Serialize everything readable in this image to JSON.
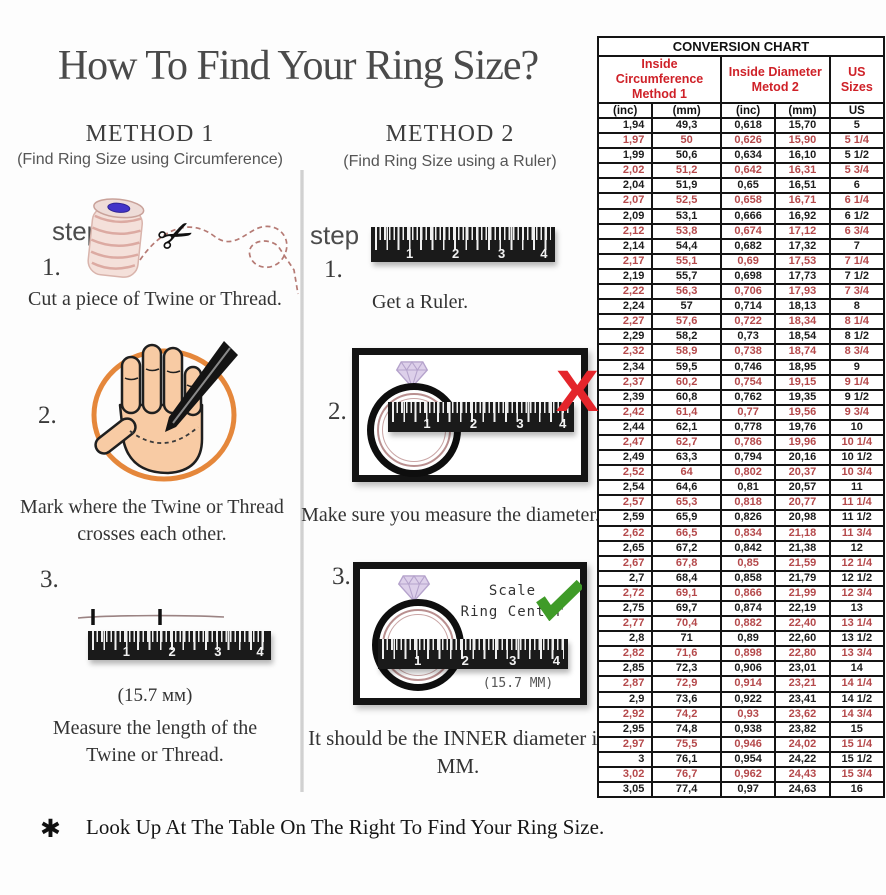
{
  "title": "How To Find Your Ring Size?",
  "method1": {
    "heading": "METHOD 1",
    "subheading": "(Find Ring Size using Circumference)",
    "step_label": "step",
    "steps": [
      {
        "num": "1.",
        "text": "Cut a piece of Twine or Thread."
      },
      {
        "num": "2.",
        "text": "Mark where the Twine or Thread crosses each other."
      },
      {
        "num": "3.",
        "measurement": "(15.7 мм)",
        "text": "Measure the length of the Twine or Thread."
      }
    ]
  },
  "method2": {
    "heading": "METHOD 2",
    "subheading": "(Find Ring Size using a Ruler)",
    "step_label": "step",
    "steps": [
      {
        "num": "1.",
        "text": "Get a Ruler."
      },
      {
        "num": "2.",
        "text": "Make sure you measure the diameter."
      },
      {
        "num": "3.",
        "text": "It should be the INNER diameter in MM."
      }
    ],
    "scale_note": "Scale\nRing Center",
    "inner_measurement": "(15.7 MM)"
  },
  "ruler_numbers": [
    "1",
    "2",
    "3",
    "4"
  ],
  "footnote": {
    "symbol": "✱",
    "text": "Look Up At The Table On The Right To Find Your Ring Size."
  },
  "icons": [
    "scissors-icon",
    "diamond-icon",
    "x-icon",
    "check-icon",
    "asterisk-icon"
  ],
  "colors": {
    "header_red": "#cf2128",
    "row_red": "#b5494b",
    "x_red": "#e4252b",
    "check_green": "#3f9b28",
    "circle_orange": "#e5873b",
    "title_gray": "#4a4a4a"
  },
  "chart": {
    "title": "CONVERSION CHART",
    "groups": [
      "Inside Circumference\nMethod 1",
      "Inside Diameter\nMetod 2",
      "US Sizes"
    ],
    "sub_headers": [
      "(inc)",
      "(mm)",
      "(inc)",
      "(mm)",
      "US"
    ],
    "rows": [
      [
        "1,94",
        "49,3",
        "0,618",
        "15,70",
        "5"
      ],
      [
        "1,97",
        "50",
        "0,626",
        "15,90",
        "5 1/4"
      ],
      [
        "1,99",
        "50,6",
        "0,634",
        "16,10",
        "5 1/2"
      ],
      [
        "2,02",
        "51,2",
        "0,642",
        "16,31",
        "5 3/4"
      ],
      [
        "2,04",
        "51,9",
        "0,65",
        "16,51",
        "6"
      ],
      [
        "2,07",
        "52,5",
        "0,658",
        "16,71",
        "6 1/4"
      ],
      [
        "2,09",
        "53,1",
        "0,666",
        "16,92",
        "6 1/2"
      ],
      [
        "2,12",
        "53,8",
        "0,674",
        "17,12",
        "6 3/4"
      ],
      [
        "2,14",
        "54,4",
        "0,682",
        "17,32",
        "7"
      ],
      [
        "2,17",
        "55,1",
        "0,69",
        "17,53",
        "7 1/4"
      ],
      [
        "2,19",
        "55,7",
        "0,698",
        "17,73",
        "7 1/2"
      ],
      [
        "2,22",
        "56,3",
        "0,706",
        "17,93",
        "7 3/4"
      ],
      [
        "2,24",
        "57",
        "0,714",
        "18,13",
        "8"
      ],
      [
        "2,27",
        "57,6",
        "0,722",
        "18,34",
        "8 1/4"
      ],
      [
        "2,29",
        "58,2",
        "0,73",
        "18,54",
        "8 1/2"
      ],
      [
        "2,32",
        "58,9",
        "0,738",
        "18,74",
        "8 3/4"
      ],
      [
        "2,34",
        "59,5",
        "0,746",
        "18,95",
        "9"
      ],
      [
        "2,37",
        "60,2",
        "0,754",
        "19,15",
        "9 1/4"
      ],
      [
        "2,39",
        "60,8",
        "0,762",
        "19,35",
        "9 1/2"
      ],
      [
        "2,42",
        "61,4",
        "0,77",
        "19,56",
        "9 3/4"
      ],
      [
        "2,44",
        "62,1",
        "0,778",
        "19,76",
        "10"
      ],
      [
        "2,47",
        "62,7",
        "0,786",
        "19,96",
        "10 1/4"
      ],
      [
        "2,49",
        "63,3",
        "0,794",
        "20,16",
        "10 1/2"
      ],
      [
        "2,52",
        "64",
        "0,802",
        "20,37",
        "10 3/4"
      ],
      [
        "2,54",
        "64,6",
        "0,81",
        "20,57",
        "11"
      ],
      [
        "2,57",
        "65,3",
        "0,818",
        "20,77",
        "11 1/4"
      ],
      [
        "2,59",
        "65,9",
        "0,826",
        "20,98",
        "11 1/2"
      ],
      [
        "2,62",
        "66,5",
        "0,834",
        "21,18",
        "11 3/4"
      ],
      [
        "2,65",
        "67,2",
        "0,842",
        "21,38",
        "12"
      ],
      [
        "2,67",
        "67,8",
        "0,85",
        "21,59",
        "12 1/4"
      ],
      [
        "2,7",
        "68,4",
        "0,858",
        "21,79",
        "12 1/2"
      ],
      [
        "2,72",
        "69,1",
        "0,866",
        "21,99",
        "12 3/4"
      ],
      [
        "2,75",
        "69,7",
        "0,874",
        "22,19",
        "13"
      ],
      [
        "2,77",
        "70,4",
        "0,882",
        "22,40",
        "13 1/4"
      ],
      [
        "2,8",
        "71",
        "0,89",
        "22,60",
        "13 1/2"
      ],
      [
        "2,82",
        "71,6",
        "0,898",
        "22,80",
        "13 3/4"
      ],
      [
        "2,85",
        "72,3",
        "0,906",
        "23,01",
        "14"
      ],
      [
        "2,87",
        "72,9",
        "0,914",
        "23,21",
        "14 1/4"
      ],
      [
        "2,9",
        "73,6",
        "0,922",
        "23,41",
        "14 1/2"
      ],
      [
        "2,92",
        "74,2",
        "0,93",
        "23,62",
        "14 3/4"
      ],
      [
        "2,95",
        "74,8",
        "0,938",
        "23,82",
        "15"
      ],
      [
        "2,97",
        "75,5",
        "0,946",
        "24,02",
        "15 1/4"
      ],
      [
        "3",
        "76,1",
        "0,954",
        "24,22",
        "15 1/2"
      ],
      [
        "3,02",
        "76,7",
        "0,962",
        "24,43",
        "15 3/4"
      ],
      [
        "3,05",
        "77,4",
        "0,97",
        "24,63",
        "16"
      ]
    ]
  }
}
